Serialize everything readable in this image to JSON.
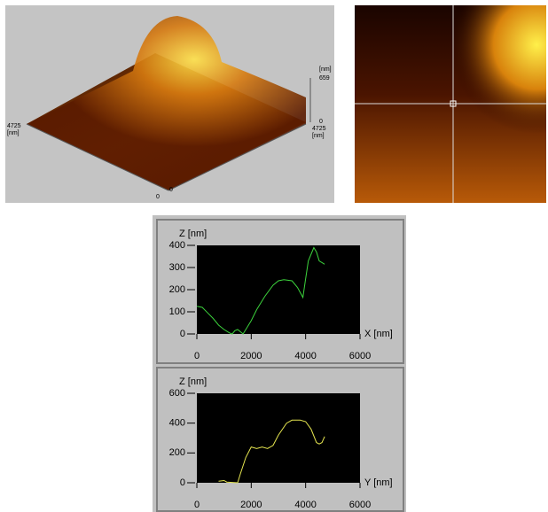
{
  "surface_view": {
    "labels": [
      "4725",
      "[nm]",
      "[nm]",
      "659",
      "0",
      "4725",
      "[nm]",
      "0",
      "0"
    ]
  },
  "chart_data": [
    {
      "type": "line",
      "ylabel": "Z [nm]",
      "xlabel": "X [nm]",
      "xlim": [
        0,
        6000
      ],
      "xticks": [
        0,
        2000,
        4000,
        6000
      ],
      "ylim": [
        0,
        400
      ],
      "yticks": [
        0,
        100,
        200,
        300,
        400
      ],
      "grid": false,
      "series": [
        {
          "color": "#3cd23c",
          "x": [
            0,
            200,
            400,
            600,
            800,
            1000,
            1200,
            1300,
            1400,
            1500,
            1600,
            1700,
            1800,
            2000,
            2200,
            2500,
            2800,
            3000,
            3200,
            3500,
            3700,
            3900,
            4000,
            4100,
            4300,
            4400,
            4500,
            4700
          ],
          "values": [
            125,
            120,
            95,
            70,
            40,
            20,
            5,
            0,
            15,
            20,
            10,
            0,
            20,
            60,
            110,
            170,
            220,
            240,
            245,
            240,
            210,
            165,
            250,
            330,
            390,
            370,
            330,
            315
          ]
        }
      ]
    },
    {
      "type": "line",
      "ylabel": "Z [nm]",
      "xlabel": "Y [nm]",
      "xlim": [
        0,
        6000
      ],
      "xticks": [
        0,
        2000,
        4000,
        6000
      ],
      "ylim": [
        0,
        600
      ],
      "yticks": [
        0,
        200,
        400,
        600
      ],
      "grid": false,
      "series": [
        {
          "color": "#e6e650",
          "x": [
            800,
            1000,
            1100,
            1500,
            1600,
            1800,
            2000,
            2200,
            2400,
            2600,
            2800,
            3000,
            3300,
            3500,
            3800,
            4000,
            4200,
            4400,
            4500,
            4600,
            4700
          ],
          "values": [
            10,
            15,
            5,
            0,
            60,
            170,
            240,
            230,
            240,
            230,
            250,
            320,
            400,
            420,
            420,
            410,
            360,
            270,
            260,
            270,
            310
          ]
        }
      ]
    }
  ]
}
